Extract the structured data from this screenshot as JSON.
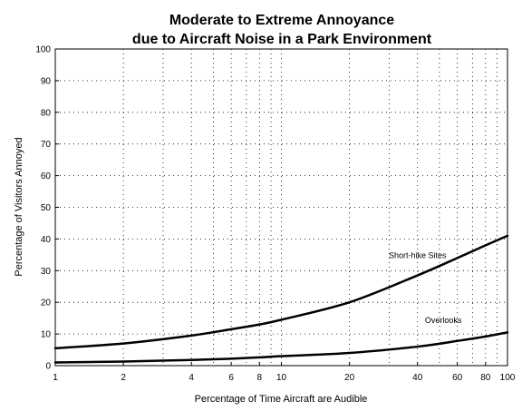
{
  "chart_data": {
    "type": "line",
    "title_lines": [
      "Moderate to Extreme Annoyance",
      "due to Aircraft Noise in a Park Environment"
    ],
    "xlabel": "Percentage of Time Aircraft are Audible",
    "ylabel": "Percentage of Visitors Annoyed",
    "x_scale": "log",
    "xlim": [
      1,
      100
    ],
    "ylim": [
      0,
      100
    ],
    "grid": true,
    "x_ticks": [
      1,
      2,
      4,
      6,
      8,
      10,
      20,
      40,
      60,
      80,
      100
    ],
    "x_tick_labels": [
      "1",
      "2",
      "4",
      "6",
      "8",
      "10",
      "20",
      "40",
      "60",
      "80",
      "100"
    ],
    "x_grid": [
      1,
      2,
      3,
      4,
      5,
      6,
      7,
      8,
      9,
      10,
      20,
      30,
      40,
      50,
      60,
      70,
      80,
      90,
      100
    ],
    "y_ticks": [
      0,
      10,
      20,
      30,
      40,
      50,
      60,
      70,
      80,
      90,
      100
    ],
    "y_tick_labels": [
      "0",
      "10",
      "20",
      "30",
      "40",
      "50",
      "60",
      "70",
      "80",
      "90",
      "100"
    ],
    "series": [
      {
        "name": "Short-hike Sites",
        "label_at": [
          40,
          34
        ],
        "x": [
          1,
          2,
          4,
          6,
          8,
          10,
          20,
          40,
          60,
          80,
          100
        ],
        "y": [
          5.5,
          7,
          9.5,
          11.5,
          13,
          14.5,
          20,
          28.5,
          34,
          38,
          41
        ]
      },
      {
        "name": "Overlooks",
        "label_at": [
          52,
          13.5
        ],
        "x": [
          1,
          2,
          4,
          6,
          8,
          10,
          20,
          40,
          60,
          80,
          100
        ],
        "y": [
          1,
          1.3,
          1.8,
          2.2,
          2.6,
          3,
          4,
          6,
          7.8,
          9.2,
          10.5
        ]
      }
    ]
  }
}
